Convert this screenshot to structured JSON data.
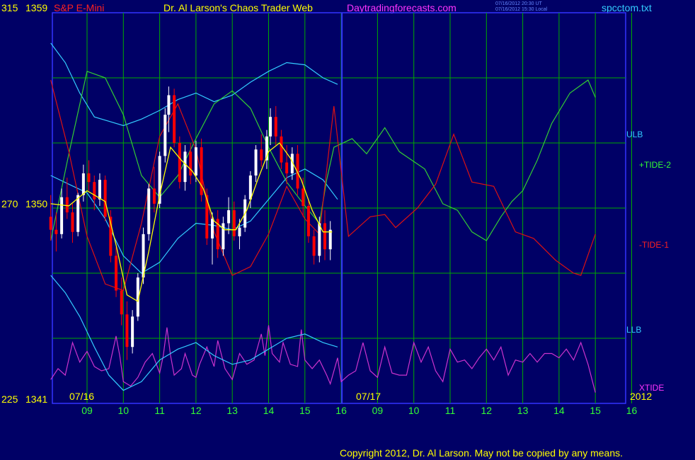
{
  "header": {
    "left_label": "S&P E-Mini",
    "title": "Dr. Al Larson's Chaos Trader Web",
    "site": "Daytradingforecasts.com",
    "stamp_line1": "07/16/2012 20:30 UT",
    "stamp_line2": "07/16/2012 15:30 Local",
    "file": "spcctom.txt"
  },
  "copyright": "Copyright 2012, Dr. Al Larson. May not be copied by any means.",
  "year": "2012",
  "colors": {
    "background": "#000066",
    "grid": "#00aa00",
    "price_up": "#ffffff",
    "price_down": "#ff0000",
    "avg": "#ffff00",
    "tide_plus": "#33cc33",
    "tide_minus": "#dd1111",
    "bands": "#33ccff",
    "xtide": "#cc33cc",
    "day_divider": "#3333ff"
  },
  "chart_data": {
    "type": "line",
    "x_unit": "hour (two sessions: 07/16 and 07/17)",
    "y_left_outer": {
      "top": 315,
      "mid": 270,
      "bottom": 225
    },
    "y_price": {
      "top": 1359,
      "mid": 1350,
      "bottom": 1341
    },
    "ylim": [
      1341,
      1359
    ],
    "y_tick_labels": [
      {
        "outer": "315",
        "price": "1359"
      },
      {
        "outer": "270",
        "price": "1350"
      },
      {
        "outer": "225",
        "price": "1341"
      }
    ],
    "x_tick_labels": [
      "09",
      "10",
      "11",
      "12",
      "13",
      "14",
      "15",
      "16",
      "09",
      "10",
      "11",
      "12",
      "13",
      "14",
      "15",
      "16"
    ],
    "date_labels": [
      "07/16",
      "07/17"
    ],
    "grid": true,
    "series_labels": {
      "ulb": "ULB",
      "tide2": "+TIDE-2",
      "tide1": "-TIDE-1",
      "llb": "LLB",
      "xtide": "XTIDE"
    },
    "price_bars": [
      [
        8.0,
        1349.6,
        1350.6,
        1348.5,
        1349.0
      ],
      [
        8.15,
        1349.0,
        1349.8,
        1348.0,
        1348.8
      ],
      [
        8.3,
        1348.8,
        1350.9,
        1348.6,
        1350.5
      ],
      [
        8.45,
        1350.5,
        1351.4,
        1349.5,
        1349.8
      ],
      [
        8.6,
        1349.8,
        1350.2,
        1348.4,
        1348.9
      ],
      [
        8.75,
        1348.9,
        1350.7,
        1348.7,
        1350.6
      ],
      [
        8.9,
        1350.6,
        1352.0,
        1350.3,
        1351.6
      ],
      [
        9.05,
        1351.6,
        1352.2,
        1350.8,
        1351.2
      ],
      [
        9.2,
        1351.2,
        1351.5,
        1349.9,
        1350.4
      ],
      [
        9.35,
        1350.4,
        1351.6,
        1350.1,
        1351.3
      ],
      [
        9.5,
        1351.3,
        1351.5,
        1349.4,
        1349.6
      ],
      [
        9.65,
        1349.6,
        1349.9,
        1347.5,
        1347.8
      ],
      [
        9.8,
        1347.8,
        1348.2,
        1345.9,
        1346.2
      ],
      [
        9.95,
        1346.2,
        1346.8,
        1344.6,
        1345.1
      ],
      [
        10.1,
        1345.1,
        1345.7,
        1343.0,
        1343.6
      ],
      [
        10.25,
        1343.6,
        1345.3,
        1343.3,
        1345.0
      ],
      [
        10.4,
        1345.0,
        1347.0,
        1344.8,
        1346.8
      ],
      [
        10.55,
        1346.8,
        1349.1,
        1346.5,
        1348.8
      ],
      [
        10.7,
        1348.8,
        1351.1,
        1348.5,
        1350.9
      ],
      [
        10.85,
        1350.9,
        1351.9,
        1349.8,
        1350.2
      ],
      [
        11.0,
        1350.2,
        1352.6,
        1350.0,
        1352.4
      ],
      [
        11.15,
        1352.4,
        1354.6,
        1352.1,
        1354.3
      ],
      [
        11.25,
        1354.3,
        1355.6,
        1353.5,
        1355.2
      ],
      [
        11.4,
        1355.2,
        1355.5,
        1352.8,
        1353.0
      ],
      [
        11.55,
        1353.0,
        1353.3,
        1350.9,
        1351.2
      ],
      [
        11.7,
        1351.2,
        1352.9,
        1350.8,
        1352.6
      ],
      [
        11.85,
        1352.6,
        1353.0,
        1351.1,
        1351.5
      ],
      [
        12.0,
        1351.5,
        1353.1,
        1351.2,
        1352.8
      ],
      [
        12.15,
        1352.8,
        1353.2,
        1350.3,
        1350.6
      ],
      [
        12.3,
        1350.6,
        1350.9,
        1348.3,
        1348.6
      ],
      [
        12.45,
        1348.6,
        1349.8,
        1347.4,
        1349.5
      ],
      [
        12.6,
        1349.5,
        1349.9,
        1347.7,
        1348.1
      ],
      [
        12.75,
        1348.1,
        1349.6,
        1347.8,
        1349.3
      ],
      [
        12.9,
        1349.3,
        1350.5,
        1348.8,
        1349.9
      ],
      [
        13.05,
        1349.9,
        1350.3,
        1348.5,
        1348.7
      ],
      [
        13.2,
        1348.7,
        1349.5,
        1348.1,
        1349.1
      ],
      [
        13.35,
        1349.1,
        1350.6,
        1348.9,
        1350.4
      ],
      [
        13.5,
        1350.4,
        1351.7,
        1350.0,
        1351.5
      ],
      [
        13.65,
        1351.5,
        1352.9,
        1351.2,
        1352.7
      ],
      [
        13.8,
        1352.7,
        1353.4,
        1351.9,
        1352.2
      ],
      [
        13.95,
        1352.2,
        1353.6,
        1351.8,
        1353.3
      ],
      [
        14.05,
        1353.3,
        1354.6,
        1352.9,
        1354.2
      ],
      [
        14.2,
        1354.2,
        1354.7,
        1352.9,
        1353.3
      ],
      [
        14.35,
        1353.3,
        1353.6,
        1351.8,
        1352.1
      ],
      [
        14.5,
        1352.1,
        1352.9,
        1351.1,
        1351.6
      ],
      [
        14.65,
        1351.6,
        1352.8,
        1351.3,
        1352.5
      ],
      [
        14.8,
        1352.5,
        1352.9,
        1350.6,
        1350.9
      ],
      [
        14.95,
        1350.9,
        1351.4,
        1349.6,
        1350.1
      ],
      [
        15.1,
        1350.1,
        1350.4,
        1348.4,
        1348.7
      ],
      [
        15.25,
        1348.7,
        1349.0,
        1347.4,
        1347.8
      ],
      [
        15.4,
        1347.8,
        1349.6,
        1347.5,
        1349.3
      ],
      [
        15.55,
        1349.3,
        1349.9,
        1347.6,
        1348.1
      ],
      [
        15.7,
        1348.1,
        1349.4,
        1347.6,
        1349.0
      ]
    ],
    "avg_line": [
      [
        8.0,
        1350.2
      ],
      [
        8.5,
        1350.1
      ],
      [
        9.0,
        1350.8
      ],
      [
        9.5,
        1350.3
      ],
      [
        9.8,
        1348.3
      ],
      [
        10.1,
        1346.0
      ],
      [
        10.4,
        1345.7
      ],
      [
        10.7,
        1348.0
      ],
      [
        11.0,
        1350.6
      ],
      [
        11.3,
        1352.8
      ],
      [
        11.6,
        1352.2
      ],
      [
        11.9,
        1351.7
      ],
      [
        12.2,
        1350.9
      ],
      [
        12.5,
        1349.4
      ],
      [
        12.8,
        1349.0
      ],
      [
        13.1,
        1349.0
      ],
      [
        13.4,
        1349.9
      ],
      [
        13.7,
        1351.3
      ],
      [
        14.0,
        1352.6
      ],
      [
        14.3,
        1353.0
      ],
      [
        14.6,
        1352.3
      ],
      [
        14.9,
        1351.3
      ],
      [
        15.2,
        1349.9
      ],
      [
        15.5,
        1348.9
      ],
      [
        15.75,
        1348.9
      ]
    ],
    "tide_plus": [
      [
        8.0,
        1348.5
      ],
      [
        8.5,
        1352.5
      ],
      [
        9.0,
        1356.3
      ],
      [
        9.5,
        1356.0
      ],
      [
        10.0,
        1354.3
      ],
      [
        10.5,
        1351.5
      ],
      [
        11.0,
        1350.5
      ],
      [
        11.5,
        1351.5
      ],
      [
        12.0,
        1353.2
      ],
      [
        12.5,
        1354.8
      ],
      [
        13.0,
        1355.4
      ],
      [
        13.5,
        1354.6
      ],
      [
        14.0,
        1352.8
      ],
      [
        14.5,
        1351.2
      ],
      [
        15.0,
        1350.1
      ],
      [
        15.4,
        1349.3
      ],
      [
        15.6,
        1351.3
      ],
      [
        15.8,
        1352.8
      ],
      [
        16.3,
        1353.2
      ],
      [
        16.7,
        1352.5
      ],
      [
        17.2,
        1353.7
      ],
      [
        17.6,
        1352.6
      ],
      [
        18.3,
        1351.8
      ],
      [
        18.8,
        1350.2
      ],
      [
        19.2,
        1349.9
      ],
      [
        19.6,
        1348.9
      ],
      [
        20.0,
        1348.5
      ],
      [
        20.4,
        1349.6
      ],
      [
        20.7,
        1350.3
      ],
      [
        21.0,
        1350.8
      ],
      [
        21.4,
        1352.2
      ],
      [
        21.8,
        1353.9
      ],
      [
        22.3,
        1355.3
      ],
      [
        22.8,
        1355.9
      ],
      [
        23.0,
        1355.1
      ]
    ],
    "tide_minus": [
      [
        8.0,
        1355.9
      ],
      [
        8.5,
        1352.6
      ],
      [
        9.0,
        1348.7
      ],
      [
        9.5,
        1346.5
      ],
      [
        10.0,
        1346.2
      ],
      [
        10.5,
        1349.3
      ],
      [
        11.0,
        1353.3
      ],
      [
        11.5,
        1354.8
      ],
      [
        12.0,
        1352.7
      ],
      [
        12.5,
        1348.9
      ],
      [
        13.0,
        1346.9
      ],
      [
        13.5,
        1347.3
      ],
      [
        14.0,
        1348.8
      ],
      [
        14.5,
        1351.0
      ],
      [
        15.0,
        1349.5
      ],
      [
        15.4,
        1348.8
      ],
      [
        15.8,
        1354.7
      ],
      [
        16.2,
        1348.7
      ],
      [
        16.8,
        1349.6
      ],
      [
        17.2,
        1349.7
      ],
      [
        17.5,
        1349.1
      ],
      [
        18.1,
        1350.0
      ],
      [
        18.6,
        1351.1
      ],
      [
        19.1,
        1353.4
      ],
      [
        19.6,
        1351.2
      ],
      [
        20.2,
        1351.0
      ],
      [
        20.8,
        1348.9
      ],
      [
        21.3,
        1348.6
      ],
      [
        21.9,
        1347.6
      ],
      [
        22.4,
        1347.0
      ],
      [
        22.6,
        1346.9
      ],
      [
        23.0,
        1348.8
      ]
    ],
    "ulb": [
      [
        8.0,
        1357.6
      ],
      [
        8.4,
        1356.7
      ],
      [
        8.8,
        1355.3
      ],
      [
        9.2,
        1354.2
      ],
      [
        9.6,
        1354.0
      ],
      [
        10.0,
        1353.8
      ],
      [
        10.5,
        1354.1
      ],
      [
        11.0,
        1354.5
      ],
      [
        11.5,
        1355.0
      ],
      [
        12.0,
        1355.3
      ],
      [
        12.5,
        1354.9
      ],
      [
        13.0,
        1355.2
      ],
      [
        13.5,
        1355.8
      ],
      [
        14.0,
        1356.3
      ],
      [
        14.5,
        1356.7
      ],
      [
        15.0,
        1356.6
      ],
      [
        15.5,
        1356.0
      ],
      [
        15.9,
        1355.7
      ]
    ],
    "llb": [
      [
        8.0,
        1346.9
      ],
      [
        8.4,
        1346.1
      ],
      [
        8.8,
        1345.0
      ],
      [
        9.2,
        1343.6
      ],
      [
        9.6,
        1342.3
      ],
      [
        10.0,
        1341.6
      ],
      [
        10.5,
        1342.0
      ],
      [
        11.0,
        1343.0
      ],
      [
        11.5,
        1343.5
      ],
      [
        12.0,
        1343.8
      ],
      [
        12.5,
        1343.2
      ],
      [
        13.0,
        1342.8
      ],
      [
        13.5,
        1343.0
      ],
      [
        14.0,
        1343.5
      ],
      [
        14.5,
        1344.0
      ],
      [
        15.0,
        1344.2
      ],
      [
        15.5,
        1343.8
      ],
      [
        15.9,
        1343.6
      ]
    ],
    "ma_cyan": [
      [
        8.0,
        1351.5
      ],
      [
        8.5,
        1351.1
      ],
      [
        9.0,
        1350.7
      ],
      [
        9.5,
        1349.5
      ],
      [
        10.0,
        1347.8
      ],
      [
        10.5,
        1347.0
      ],
      [
        11.0,
        1347.5
      ],
      [
        11.5,
        1348.6
      ],
      [
        12.0,
        1349.3
      ],
      [
        12.5,
        1349.2
      ],
      [
        13.0,
        1349.0
      ],
      [
        13.5,
        1349.4
      ],
      [
        14.0,
        1350.4
      ],
      [
        14.5,
        1351.4
      ],
      [
        15.0,
        1351.8
      ],
      [
        15.5,
        1351.3
      ],
      [
        15.9,
        1350.4
      ]
    ],
    "xtide": [
      [
        8.0,
        1342.1
      ],
      [
        8.2,
        1342.6
      ],
      [
        8.4,
        1342.3
      ],
      [
        8.6,
        1343.8
      ],
      [
        8.8,
        1342.9
      ],
      [
        9.0,
        1343.4
      ],
      [
        9.2,
        1342.7
      ],
      [
        9.4,
        1342.5
      ],
      [
        9.6,
        1342.6
      ],
      [
        9.8,
        1344.1
      ],
      [
        9.9,
        1343.2
      ],
      [
        10.0,
        1342.0
      ],
      [
        10.2,
        1341.8
      ],
      [
        10.4,
        1342.2
      ],
      [
        10.6,
        1342.9
      ],
      [
        10.8,
        1343.3
      ],
      [
        11.0,
        1342.4
      ],
      [
        11.1,
        1343.2
      ],
      [
        11.2,
        1344.5
      ],
      [
        11.3,
        1343.2
      ],
      [
        11.4,
        1342.3
      ],
      [
        11.6,
        1342.6
      ],
      [
        11.7,
        1343.3
      ],
      [
        11.9,
        1342.3
      ],
      [
        12.0,
        1342.2
      ],
      [
        12.1,
        1342.8
      ],
      [
        12.3,
        1343.6
      ],
      [
        12.5,
        1342.7
      ],
      [
        12.6,
        1343.9
      ],
      [
        12.8,
        1342.6
      ],
      [
        13.0,
        1342.1
      ],
      [
        13.2,
        1343.3
      ],
      [
        13.4,
        1342.8
      ],
      [
        13.6,
        1343.0
      ],
      [
        13.8,
        1344.2
      ],
      [
        13.9,
        1343.2
      ],
      [
        14.0,
        1344.6
      ],
      [
        14.1,
        1343.3
      ],
      [
        14.3,
        1342.9
      ],
      [
        14.4,
        1343.8
      ],
      [
        14.6,
        1342.8
      ],
      [
        14.8,
        1342.7
      ],
      [
        14.9,
        1344.4
      ],
      [
        15.0,
        1343.0
      ],
      [
        15.2,
        1342.6
      ],
      [
        15.4,
        1343.0
      ],
      [
        15.6,
        1342.3
      ],
      [
        15.7,
        1341.9
      ],
      [
        15.9,
        1343.1
      ],
      [
        16.0,
        1342.0
      ],
      [
        16.2,
        1342.3
      ],
      [
        16.4,
        1342.5
      ],
      [
        16.6,
        1343.8
      ],
      [
        16.8,
        1342.5
      ],
      [
        17.0,
        1342.2
      ],
      [
        17.2,
        1343.6
      ],
      [
        17.4,
        1342.4
      ],
      [
        17.6,
        1342.3
      ],
      [
        17.8,
        1342.3
      ],
      [
        18.0,
        1343.8
      ],
      [
        18.2,
        1342.9
      ],
      [
        18.4,
        1343.6
      ],
      [
        18.6,
        1342.5
      ],
      [
        18.8,
        1342.0
      ],
      [
        19.0,
        1343.5
      ],
      [
        19.2,
        1342.9
      ],
      [
        19.4,
        1343.0
      ],
      [
        19.6,
        1342.6
      ],
      [
        19.8,
        1343.1
      ],
      [
        20.0,
        1343.5
      ],
      [
        20.2,
        1343.0
      ],
      [
        20.4,
        1343.6
      ],
      [
        20.6,
        1342.3
      ],
      [
        20.8,
        1343.0
      ],
      [
        21.0,
        1342.9
      ],
      [
        21.2,
        1343.3
      ],
      [
        21.4,
        1342.9
      ],
      [
        21.6,
        1343.3
      ],
      [
        21.8,
        1343.3
      ],
      [
        22.0,
        1343.1
      ],
      [
        22.2,
        1343.5
      ],
      [
        22.4,
        1343.0
      ],
      [
        22.6,
        1343.8
      ],
      [
        22.8,
        1342.8
      ],
      [
        23.0,
        1341.5
      ]
    ]
  }
}
